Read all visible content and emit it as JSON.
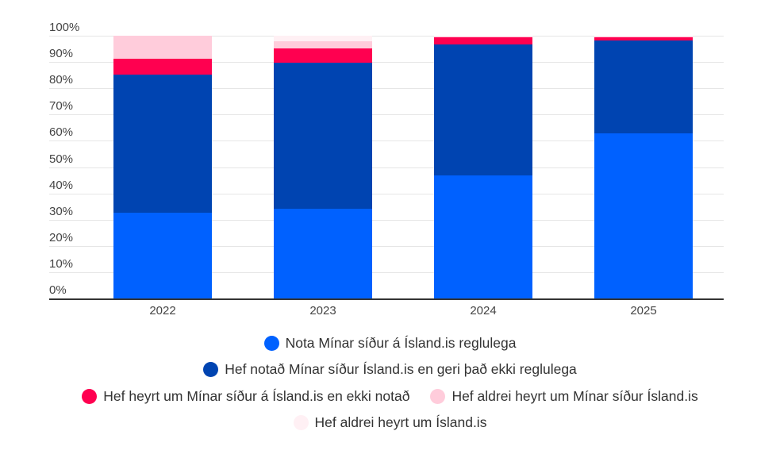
{
  "chart_data": {
    "type": "bar",
    "stacked": true,
    "title": "",
    "xlabel": "",
    "ylabel": "",
    "ylim": [
      0,
      100
    ],
    "yticks": [
      "0%",
      "10%",
      "20%",
      "30%",
      "40%",
      "50%",
      "60%",
      "70%",
      "80%",
      "90%",
      "100%"
    ],
    "categories": [
      "2022",
      "2023",
      "2024",
      "2025"
    ],
    "series": [
      {
        "name": "Nota Mínar síður á Ísland.is reglulega",
        "color": "#0061ff",
        "values": [
          32.6,
          34.1,
          46.8,
          62.8
        ]
      },
      {
        "name": "Hef notað Mínar síður Ísland.is en geri það ekki reglulega",
        "color": "#0044b1",
        "values": [
          52.6,
          55.6,
          49.8,
          35.4
        ]
      },
      {
        "name": "Hef heyrt um Mínar síður á Ísland.is en ekki notað",
        "color": "#ff0050",
        "values": [
          6.0,
          5.4,
          2.7,
          1.3
        ]
      },
      {
        "name": "Hef aldrei heyrt um Mínar síður Ísland.is",
        "color": "#ffccdb",
        "values": [
          8.8,
          2.7,
          0.6,
          0.4
        ]
      },
      {
        "name": "Hef aldrei heyrt um Ísland.is",
        "color": "#fff0f4",
        "values": [
          0.0,
          2.2,
          0.1,
          0.1
        ]
      }
    ],
    "grid": true,
    "legend_position": "bottom"
  }
}
